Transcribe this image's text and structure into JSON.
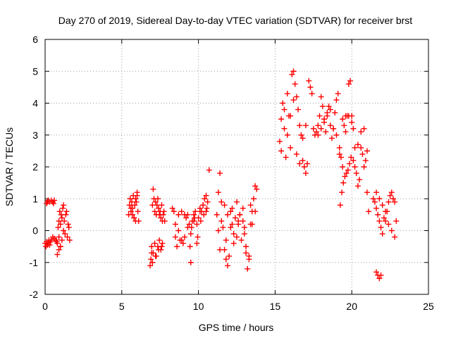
{
  "chart_data": {
    "type": "scatter",
    "title": "Day 270 of 2019, Sidereal Day-to-day VTEC variation (SDTVAR) for receiver brst",
    "xlabel": "GPS time / hours",
    "ylabel": "SDTVAR / TECUs",
    "xlim": [
      0,
      25
    ],
    "ylim": [
      -2,
      6
    ],
    "xticks": [
      0,
      5,
      10,
      15,
      20,
      25
    ],
    "yticks": [
      -2,
      -1,
      0,
      1,
      2,
      3,
      4,
      5,
      6
    ],
    "grid": true,
    "marker": "+",
    "color": "#ff0000",
    "series": [
      {
        "name": "SDTVAR",
        "x": [
          0.0,
          0.05,
          0.1,
          0.15,
          0.2,
          0.25,
          0.3,
          0.35,
          0.4,
          0.5,
          0.6,
          0.1,
          0.15,
          0.2,
          0.3,
          0.4,
          0.5,
          0.55,
          0.6,
          0.7,
          0.75,
          0.8,
          0.85,
          0.9,
          0.9,
          0.95,
          1.0,
          1.0,
          1.05,
          1.1,
          1.1,
          1.15,
          1.2,
          1.2,
          1.25,
          1.3,
          1.35,
          1.4,
          1.45,
          1.5,
          1.55,
          1.6,
          0.8,
          0.9,
          1.0,
          5.45,
          5.5,
          5.55,
          5.6,
          5.65,
          5.7,
          5.75,
          5.8,
          5.85,
          5.9,
          5.95,
          6.0,
          6.05,
          6.1,
          5.6,
          5.7,
          5.8,
          5.9,
          6.0,
          6.85,
          6.9,
          6.95,
          7.0,
          7.05,
          7.1,
          7.15,
          7.2,
          7.25,
          7.3,
          7.35,
          7.4,
          7.45,
          7.5,
          7.55,
          7.6,
          7.65,
          7.7,
          7.75,
          7.8,
          6.95,
          7.05,
          7.15,
          7.25,
          7.35,
          7.45,
          7.55,
          7.65,
          7.0,
          7.2,
          7.4,
          7.6,
          8.3,
          8.4,
          8.5,
          8.6,
          8.7,
          8.8,
          8.9,
          9.0,
          9.1,
          9.2,
          9.3,
          9.4,
          9.5,
          9.6,
          9.7,
          9.8,
          9.9,
          10.0,
          10.1,
          10.2,
          10.3,
          10.4,
          10.5,
          10.6,
          8.5,
          8.7,
          8.9,
          9.1,
          9.3,
          9.5,
          9.7,
          9.9,
          10.1,
          10.3,
          10.5,
          9.45,
          9.55,
          9.75,
          9.95,
          10.15,
          10.35,
          10.55,
          10.7,
          11.2,
          11.3,
          11.4,
          11.5,
          11.6,
          11.7,
          11.8,
          11.9,
          12.0,
          12.1,
          12.2,
          12.3,
          12.4,
          12.5,
          12.6,
          12.7,
          12.8,
          12.9,
          13.0,
          13.1,
          13.2,
          13.3,
          13.4,
          13.5,
          13.6,
          13.7,
          13.8,
          11.3,
          11.5,
          11.7,
          11.9,
          12.1,
          12.3,
          12.5,
          12.7,
          12.9,
          13.1,
          13.3,
          13.5,
          13.7,
          11.4,
          11.8,
          12.2,
          12.6,
          13.0,
          13.4,
          15.3,
          15.4,
          15.5,
          15.6,
          15.7,
          15.8,
          15.9,
          16.0,
          16.1,
          16.2,
          16.3,
          16.4,
          16.5,
          16.6,
          16.7,
          16.8,
          16.9,
          17.0,
          17.1,
          17.2,
          17.3,
          17.4,
          17.5,
          17.6,
          15.4,
          15.6,
          15.8,
          16.0,
          16.2,
          16.4,
          16.6,
          16.8,
          17.0,
          17.7,
          17.8,
          17.9,
          18.0,
          18.1,
          18.2,
          18.3,
          18.4,
          18.5,
          18.6,
          18.7,
          18.8,
          18.9,
          19.0,
          19.1,
          19.2,
          19.3,
          19.4,
          19.5,
          19.6,
          19.7,
          19.8,
          19.9,
          20.0,
          20.1,
          17.8,
          18.0,
          18.2,
          18.4,
          18.6,
          18.8,
          19.0,
          19.2,
          19.4,
          19.6,
          19.8,
          20.0,
          19.25,
          19.35,
          19.45,
          19.55,
          19.65,
          19.75,
          19.85,
          19.95,
          20.1,
          20.2,
          20.3,
          20.4,
          20.5,
          20.6,
          20.7,
          20.8,
          20.9,
          21.0,
          21.1,
          20.2,
          20.4,
          20.6,
          20.8,
          21.0,
          21.4,
          21.5,
          21.6,
          21.7,
          21.8,
          21.9,
          22.0,
          22.1,
          22.2,
          22.3,
          22.4,
          22.5,
          22.6,
          22.7,
          22.8,
          22.9,
          21.6,
          21.8,
          22.0,
          22.2,
          22.4,
          22.6,
          22.8,
          21.6,
          21.7,
          21.8,
          21.9
        ],
        "y": [
          -0.4,
          -0.5,
          -0.35,
          -0.45,
          -0.4,
          -0.3,
          -0.45,
          -0.35,
          -0.3,
          -0.2,
          -0.25,
          0.85,
          0.9,
          0.95,
          0.9,
          0.95,
          0.9,
          0.85,
          0.95,
          -0.3,
          -0.35,
          -0.4,
          0.1,
          -0.2,
          0.3,
          0.6,
          -0.5,
          0.2,
          0.5,
          -0.3,
          0.4,
          0.7,
          0.0,
          0.8,
          0.3,
          -0.1,
          0.5,
          0.6,
          -0.2,
          0.2,
          0.1,
          -0.3,
          -0.75,
          -0.6,
          -0.5,
          0.5,
          0.8,
          1.0,
          0.6,
          0.9,
          0.7,
          1.1,
          0.4,
          0.8,
          0.3,
          0.9,
          1.2,
          0.6,
          0.3,
          0.7,
          0.5,
          0.4,
          1.0,
          1.1,
          -1.1,
          -0.9,
          -0.7,
          0.8,
          1.3,
          1.0,
          0.6,
          0.9,
          0.5,
          0.8,
          1.0,
          0.7,
          0.5,
          0.6,
          0.4,
          0.8,
          0.3,
          0.5,
          0.6,
          0.3,
          -0.5,
          -0.7,
          -0.4,
          -0.8,
          -0.5,
          -0.3,
          -0.6,
          -0.4,
          -1.0,
          -0.8,
          -0.6,
          -0.5,
          0.7,
          0.6,
          -0.2,
          -0.5,
          0.5,
          -0.3,
          0.6,
          -0.4,
          -0.2,
          0.4,
          0.5,
          0.2,
          -1.0,
          0.3,
          0.5,
          0.6,
          0.2,
          0.4,
          0.7,
          0.6,
          0.8,
          1.0,
          1.1,
          0.9,
          0.2,
          0.0,
          -0.3,
          0.5,
          0.1,
          -0.1,
          0.3,
          -0.4,
          0.6,
          0.8,
          0.6,
          -0.5,
          0.1,
          0.4,
          -0.2,
          0.3,
          0.5,
          0.7,
          1.9,
          0.5,
          1.2,
          1.8,
          0.9,
          0.1,
          -0.6,
          -0.9,
          -1.1,
          -0.8,
          0.6,
          0.2,
          -0.1,
          0.4,
          0.9,
          0.3,
          0.5,
          -0.3,
          0.7,
          0.1,
          -0.7,
          -1.2,
          -0.9,
          0.2,
          0.6,
          1.0,
          1.4,
          1.3,
          0.0,
          0.3,
          0.8,
          0.5,
          0.1,
          -0.4,
          -0.2,
          0.5,
          0.3,
          -0.5,
          -0.8,
          0.2,
          0.6,
          -0.6,
          -0.3,
          0.7,
          0.2,
          -0.1,
          0.8,
          2.8,
          3.5,
          4.0,
          3.2,
          2.3,
          4.3,
          3.6,
          2.6,
          4.9,
          5.0,
          4.6,
          4.2,
          3.8,
          3.3,
          3.0,
          2.2,
          2.0,
          1.8,
          2.1,
          4.7,
          4.5,
          4.3,
          3.2,
          3.0,
          2.5,
          3.8,
          3.0,
          3.6,
          4.1,
          2.4,
          2.1,
          2.9,
          3.3,
          3.1,
          3.3,
          3.6,
          4.2,
          3.9,
          3.4,
          3.1,
          3.6,
          3.9,
          3.3,
          2.9,
          3.2,
          3.7,
          4.1,
          4.3,
          2.6,
          2.3,
          3.5,
          3.3,
          3.1,
          3.6,
          4.6,
          4.7,
          3.4,
          3.2,
          3.0,
          3.2,
          3.5,
          3.7,
          3.8,
          3.2,
          3.0,
          2.4,
          2.0,
          3.6,
          3.6,
          3.6,
          0.8,
          1.2,
          1.5,
          1.7,
          1.8,
          1.9,
          2.1,
          2.3,
          2.2,
          2.0,
          1.8,
          1.4,
          1.6,
          2.6,
          2.4,
          2.0,
          2.2,
          1.2,
          0.6,
          2.6,
          2.7,
          3.1,
          3.2,
          2.5,
          1.0,
          0.9,
          0.7,
          0.5,
          0.3,
          0.1,
          -0.1,
          0.4,
          0.3,
          0.6,
          0.9,
          1.1,
          1.2,
          1.0,
          0.9,
          0.3,
          1.2,
          1.0,
          0.8,
          0.6,
          0.2,
          0.0,
          -0.2,
          -1.3,
          -1.4,
          -1.5,
          -1.4
        ]
      }
    ]
  }
}
